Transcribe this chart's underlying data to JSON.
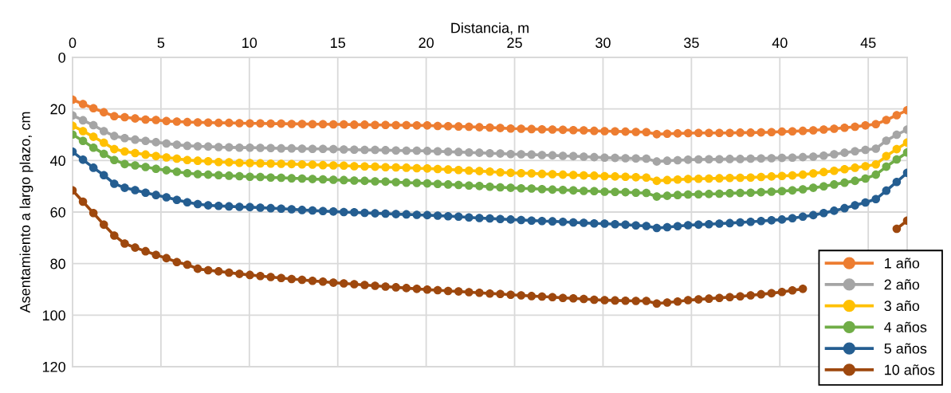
{
  "chart_data": {
    "type": "line",
    "xlabel": "Distancia, m",
    "ylabel": "Asentamiento a largo plazo, cm",
    "x": [
      0,
      0.59,
      1.18,
      1.77,
      2.36,
      2.95,
      3.54,
      4.13,
      4.72,
      5.31,
      5.9,
      6.49,
      7.08,
      7.67,
      8.26,
      8.85,
      9.44,
      10.03,
      10.62,
      11.21,
      11.8,
      12.39,
      12.98,
      13.57,
      14.16,
      14.75,
      15.34,
      15.93,
      16.52,
      17.11,
      17.7,
      18.29,
      18.88,
      19.47,
      20.06,
      20.65,
      21.24,
      21.83,
      22.42,
      23.01,
      23.6,
      24.19,
      24.78,
      25.37,
      25.96,
      26.55,
      27.14,
      27.73,
      28.32,
      28.91,
      29.5,
      30.09,
      30.68,
      31.27,
      31.86,
      32.45,
      33.04,
      33.63,
      34.22,
      34.81,
      35.4,
      35.99,
      36.58,
      37.17,
      37.76,
      38.35,
      38.94,
      39.53,
      40.12,
      40.71,
      41.3,
      41.89,
      42.48,
      43.07,
      43.66,
      44.25,
      44.84,
      45.43,
      46.02,
      46.61,
      47.2
    ],
    "series": [
      {
        "name": "1 año",
        "color": "#ed7d31",
        "values": [
          16.4,
          18.1,
          19.7,
          21.3,
          22.8,
          23.2,
          23.7,
          24.1,
          24.3,
          24.7,
          24.9,
          25.1,
          25.2,
          25.3,
          25.4,
          25.4,
          25.5,
          25.6,
          25.6,
          25.7,
          25.7,
          25.8,
          25.8,
          25.9,
          25.9,
          26.0,
          26.0,
          26.1,
          26.1,
          26.2,
          26.2,
          26.3,
          26.3,
          26.4,
          26.4,
          26.6,
          26.7,
          26.8,
          26.9,
          27.1,
          27.2,
          27.4,
          27.6,
          27.7,
          27.8,
          27.9,
          28.0,
          28.1,
          28.2,
          28.3,
          28.5,
          28.6,
          28.7,
          28.8,
          28.9,
          29.0,
          29.8,
          29.6,
          29.5,
          29.4,
          29.3,
          29.3,
          29.3,
          29.3,
          29.2,
          29.2,
          29.1,
          29.0,
          28.8,
          28.7,
          28.5,
          28.3,
          28.0,
          27.7,
          27.3,
          26.9,
          26.4,
          25.9,
          24.3,
          22.4,
          20.5
        ]
      },
      {
        "name": "2 año",
        "color": "#a5a5a5",
        "values": [
          22.5,
          24.4,
          26.3,
          28.6,
          30.5,
          31.3,
          31.9,
          32.4,
          32.9,
          33.4,
          33.9,
          34.3,
          34.5,
          34.6,
          34.8,
          34.9,
          35.0,
          35.0,
          35.1,
          35.2,
          35.3,
          35.3,
          35.4,
          35.5,
          35.5,
          35.6,
          35.7,
          35.8,
          35.9,
          35.9,
          36.0,
          36.1,
          36.2,
          36.2,
          36.3,
          36.4,
          36.6,
          36.7,
          36.9,
          37.0,
          37.2,
          37.3,
          37.5,
          37.6,
          37.7,
          37.9,
          38.0,
          38.2,
          38.3,
          38.5,
          38.7,
          38.9,
          39.0,
          39.1,
          39.2,
          39.3,
          40.4,
          40.1,
          39.9,
          39.7,
          39.6,
          39.5,
          39.5,
          39.4,
          39.4,
          39.3,
          39.2,
          39.1,
          39.0,
          38.9,
          38.7,
          38.5,
          38.1,
          37.6,
          37.0,
          36.4,
          35.9,
          35.4,
          32.3,
          30.0,
          28.0
        ]
      },
      {
        "name": "3 año",
        "color": "#ffc000",
        "values": [
          26.5,
          28.6,
          30.8,
          33.1,
          35.6,
          36.5,
          37.1,
          37.7,
          38.3,
          38.8,
          39.3,
          39.8,
          40.1,
          40.3,
          40.6,
          40.7,
          40.9,
          41.0,
          41.1,
          41.2,
          41.3,
          41.4,
          41.5,
          41.6,
          41.8,
          41.9,
          42.0,
          42.2,
          42.3,
          42.4,
          42.6,
          42.7,
          42.8,
          43.0,
          43.1,
          43.3,
          43.5,
          43.7,
          43.9,
          44.1,
          44.3,
          44.6,
          44.8,
          44.9,
          45.0,
          45.2,
          45.3,
          45.5,
          45.6,
          45.8,
          45.9,
          46.1,
          46.2,
          46.3,
          46.5,
          46.6,
          47.9,
          47.6,
          47.4,
          47.2,
          47.1,
          47.0,
          46.9,
          46.8,
          46.7,
          46.6,
          46.4,
          46.2,
          46.0,
          45.8,
          45.5,
          45.0,
          44.5,
          44.0,
          43.4,
          42.8,
          42.2,
          41.5,
          38.3,
          35.6,
          33.0
        ]
      },
      {
        "name": "4 años",
        "color": "#70ad47",
        "values": [
          29.9,
          32.4,
          35.0,
          37.4,
          39.8,
          41.4,
          41.9,
          42.5,
          43.2,
          43.8,
          44.4,
          44.9,
          45.3,
          45.5,
          45.7,
          45.9,
          46.1,
          46.3,
          46.4,
          46.6,
          46.7,
          46.9,
          47.0,
          47.2,
          47.3,
          47.5,
          47.6,
          47.8,
          47.9,
          48.1,
          48.2,
          48.4,
          48.6,
          48.7,
          48.9,
          49.1,
          49.3,
          49.5,
          49.7,
          49.9,
          50.2,
          50.4,
          50.6,
          50.8,
          50.9,
          51.1,
          51.3,
          51.4,
          51.6,
          51.8,
          51.9,
          52.1,
          52.2,
          52.3,
          52.5,
          52.6,
          54.0,
          53.7,
          53.4,
          53.2,
          53.1,
          53.0,
          52.9,
          52.7,
          52.6,
          52.5,
          52.3,
          52.1,
          51.9,
          51.6,
          51.2,
          50.6,
          50.0,
          49.3,
          48.6,
          47.9,
          47.0,
          45.5,
          42.4,
          39.6,
          36.9
        ]
      },
      {
        "name": "5 años",
        "color": "#255e91",
        "values": [
          36.6,
          39.7,
          42.8,
          45.7,
          49.0,
          50.6,
          51.5,
          52.5,
          53.4,
          54.3,
          55.3,
          56.2,
          56.9,
          57.4,
          57.6,
          57.8,
          58.0,
          58.1,
          58.3,
          58.5,
          58.7,
          58.9,
          59.2,
          59.4,
          59.6,
          59.8,
          60.0,
          60.1,
          60.3,
          60.5,
          60.6,
          60.8,
          60.9,
          61.1,
          61.2,
          61.4,
          61.6,
          61.8,
          62.1,
          62.3,
          62.5,
          62.7,
          62.9,
          63.1,
          63.3,
          63.5,
          63.6,
          63.8,
          64.0,
          64.2,
          64.4,
          64.5,
          64.7,
          64.9,
          65.2,
          65.4,
          66.2,
          65.9,
          65.5,
          65.1,
          64.9,
          64.7,
          64.5,
          64.3,
          64.0,
          63.8,
          63.5,
          63.2,
          62.9,
          62.4,
          61.8,
          61.2,
          60.4,
          59.5,
          58.5,
          57.4,
          56.3,
          55.0,
          51.7,
          48.3,
          44.8
        ]
      },
      {
        "name": "10 años",
        "color": "#9e480e",
        "values": [
          51.6,
          56.0,
          60.4,
          64.9,
          69.1,
          72.2,
          73.8,
          75.2,
          76.6,
          77.9,
          79.4,
          80.4,
          82.0,
          82.6,
          83.0,
          83.5,
          84.0,
          84.4,
          84.8,
          85.2,
          85.6,
          86.0,
          86.3,
          86.7,
          87.0,
          87.4,
          87.7,
          88.0,
          88.3,
          88.6,
          88.9,
          89.2,
          89.5,
          89.8,
          90.1,
          90.3,
          90.6,
          90.8,
          91.1,
          91.3,
          91.6,
          91.8,
          92.1,
          92.3,
          92.6,
          92.8,
          93.0,
          93.3,
          93.5,
          93.7,
          94.0,
          94.2,
          94.3,
          94.4,
          94.5,
          94.5,
          95.5,
          95.1,
          94.7,
          94.2,
          93.9,
          93.6,
          93.3,
          93.0,
          92.7,
          92.3,
          91.9,
          91.5,
          91.0,
          90.4,
          89.8,
          null,
          null,
          null,
          null,
          null,
          null,
          null,
          null,
          66.5,
          63.3
        ]
      }
    ],
    "xlim": [
      0,
      47.2
    ],
    "xticks": [
      0,
      5,
      10,
      15,
      20,
      25,
      30,
      35,
      40,
      45
    ],
    "ylim": [
      120,
      0
    ],
    "yticks": [
      0,
      20,
      40,
      60,
      80,
      100,
      120
    ],
    "grid": true,
    "legend": "bottom right",
    "marker": "circle",
    "line_style": "solid"
  }
}
